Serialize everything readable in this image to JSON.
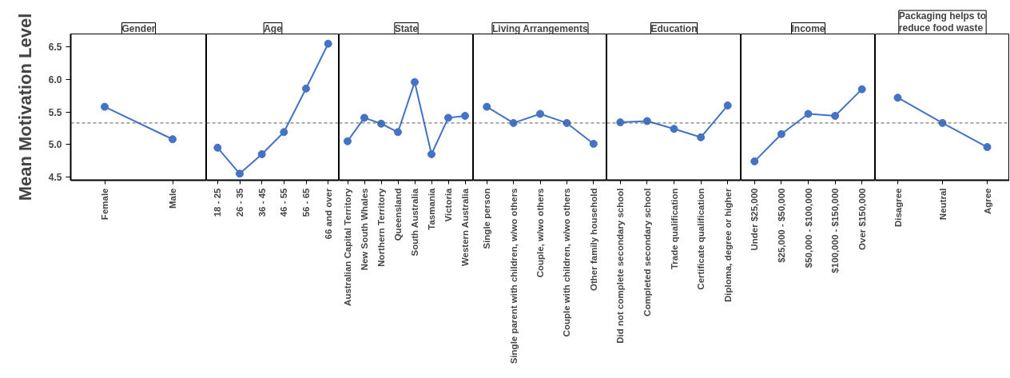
{
  "chart_data": [
    {
      "type": "line",
      "title": "Gender",
      "ylabel": "Mean Motivation Level",
      "categories": [
        "Female",
        "Male"
      ],
      "values": [
        5.58,
        5.08
      ],
      "color": "#4472c4",
      "marker": "circle",
      "ylim": [
        4.45,
        6.7
      ],
      "yticks": [
        4.5,
        {
          "value": 5.0,
          "label": "5.0"
        },
        5.5,
        {
          "value": 6.0,
          "label": "6.0"
        },
        6.5
      ],
      "ref_lines": [
        {
          "axis": "y",
          "value": 5.33,
          "line_style": "dashed",
          "color": "#595959"
        }
      ],
      "grid": false
    },
    {
      "type": "line",
      "title": "Age",
      "categories": [
        "18 - 25",
        "26 - 35",
        "36 - 45",
        "46 - 55",
        "56 - 65",
        "66 and over"
      ],
      "values": [
        4.95,
        4.55,
        4.85,
        5.19,
        5.86,
        6.55
      ],
      "color": "#4472c4",
      "marker": "circle",
      "ylim": [
        4.45,
        6.7
      ],
      "tick_labels": "x",
      "ref_lines": [
        {
          "axis": "y",
          "value": 5.33,
          "line_style": "dashed",
          "color": "#595959"
        }
      ],
      "grid": false
    },
    {
      "type": "line",
      "title": "State",
      "categories": [
        "Australian Capital Territory",
        "New South Whales",
        "Northern Territory",
        "Queensland",
        "South Australia",
        "Tasmania",
        "Victoria",
        "Western Australia"
      ],
      "values": [
        5.05,
        5.41,
        5.32,
        5.19,
        5.96,
        4.85,
        5.41,
        5.44
      ],
      "color": "#4472c4",
      "marker": "circle",
      "ylim": [
        4.45,
        6.7
      ],
      "tick_labels": "x",
      "ref_lines": [
        {
          "axis": "y",
          "value": 5.33,
          "line_style": "dashed",
          "color": "#595959"
        }
      ],
      "grid": false
    },
    {
      "type": "line",
      "title": "Living Arrangements",
      "categories": [
        "Single person",
        "Single parent with children, w/wo others",
        "Couple, w/wo others",
        "Couple with children, w/wo others",
        "Other family household"
      ],
      "values": [
        5.58,
        5.33,
        5.47,
        5.33,
        5.01
      ],
      "color": "#4472c4",
      "marker": "circle",
      "ylim": [
        4.45,
        6.7
      ],
      "tick_labels": "x",
      "ref_lines": [
        {
          "axis": "y",
          "value": 5.33,
          "line_style": "dashed",
          "color": "#595959"
        }
      ],
      "grid": false
    },
    {
      "type": "line",
      "title": "Education",
      "categories": [
        "Did not complete secondary school",
        "Completed secondary school",
        "Trade qualification",
        "Certificate qualification",
        "Diploma, degree or higher"
      ],
      "values": [
        5.34,
        5.36,
        5.24,
        5.11,
        5.6
      ],
      "color": "#4472c4",
      "marker": "circle",
      "ylim": [
        4.45,
        6.7
      ],
      "tick_labels": "x",
      "ref_lines": [
        {
          "axis": "y",
          "value": 5.33,
          "line_style": "dashed",
          "color": "#595959"
        }
      ],
      "grid": false
    },
    {
      "type": "line",
      "title": "Income",
      "categories": [
        "Under $25,000",
        "$25,000 - $50,000",
        "$50,000 - $100,000",
        "$100,000 - $150,000",
        "Over $150,000"
      ],
      "values": [
        4.74,
        5.16,
        5.47,
        5.44,
        5.85
      ],
      "color": "#4472c4",
      "marker": "circle",
      "ylim": [
        4.45,
        6.7
      ],
      "tick_labels": "x",
      "ref_lines": [
        {
          "axis": "y",
          "value": 5.33,
          "line_style": "dashed",
          "color": "#595959"
        }
      ],
      "grid": false
    },
    {
      "type": "line",
      "title": "Packaging helps to reduce food waste",
      "categories": [
        "Disagree",
        "Neutral",
        "Agree"
      ],
      "values": [
        5.72,
        5.33,
        4.96
      ],
      "color": "#4472c4",
      "marker": "circle",
      "ylim": [
        4.45,
        6.7
      ],
      "tick_labels": "x",
      "ref_lines": [
        {
          "axis": "y",
          "value": 5.33,
          "line_style": "dashed",
          "color": "#595959"
        }
      ],
      "grid": false
    }
  ]
}
